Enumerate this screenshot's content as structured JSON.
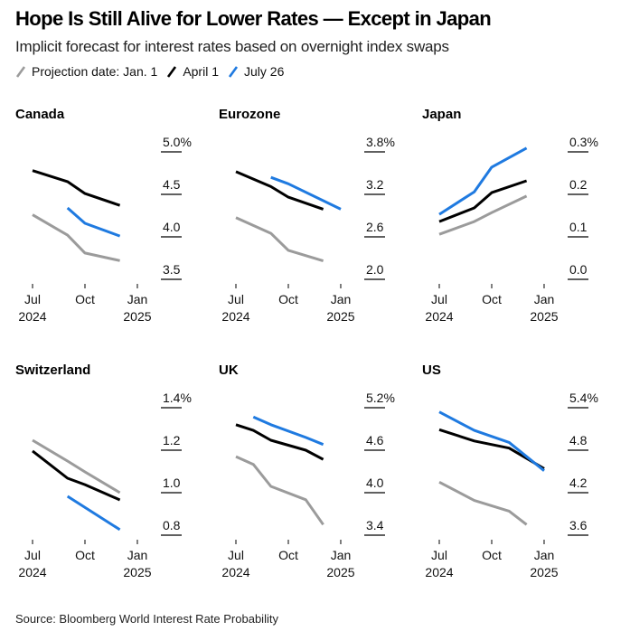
{
  "header": {
    "title": "Hope Is Still Alive for Lower Rates — Except in Japan",
    "subtitle": "Implicit forecast for interest rates based on overnight index swaps"
  },
  "legend": [
    {
      "label": "Projection date: Jan. 1",
      "color": "#9b9b9b"
    },
    {
      "label": "April 1",
      "color": "#000000"
    },
    {
      "label": "July 26",
      "color": "#1f7ae0"
    }
  ],
  "footer": {
    "source": "Source: Bloomberg World Interest Rate Probability"
  },
  "chart_data": [
    {
      "type": "line",
      "title": "Canada",
      "x_unit": "months since Jul 1 2024",
      "xticks": [
        {
          "value": 0,
          "label": "Jul",
          "sublabel": "2024"
        },
        {
          "value": 3,
          "label": "Oct",
          "sublabel": ""
        },
        {
          "value": 6,
          "label": "Jan",
          "sublabel": "2025"
        }
      ],
      "xlim": [
        0,
        6
      ],
      "ylim": [
        3.5,
        5.0
      ],
      "yticks": [
        {
          "value": 5.0,
          "label": "5.0%"
        },
        {
          "value": 4.5,
          "label": "4.5"
        },
        {
          "value": 4.0,
          "label": "4.0"
        },
        {
          "value": 3.5,
          "label": "3.5"
        }
      ],
      "series": [
        {
          "name": "Projection date: Jan. 1",
          "color": "#9b9b9b",
          "x": [
            0,
            2,
            3,
            5
          ],
          "values": [
            4.26,
            4.02,
            3.81,
            3.72
          ]
        },
        {
          "name": "April 1",
          "color": "#000000",
          "x": [
            0,
            2,
            3,
            5
          ],
          "values": [
            4.78,
            4.65,
            4.51,
            4.37
          ]
        },
        {
          "name": "July 26",
          "color": "#1f7ae0",
          "x": [
            2,
            3,
            5
          ],
          "values": [
            4.34,
            4.16,
            4.01
          ]
        }
      ]
    },
    {
      "type": "line",
      "title": "Eurozone",
      "x_unit": "months since Jul 1 2024",
      "xticks": [
        {
          "value": 0,
          "label": "Jul",
          "sublabel": "2024"
        },
        {
          "value": 3,
          "label": "Oct",
          "sublabel": ""
        },
        {
          "value": 6,
          "label": "Jan",
          "sublabel": "2025"
        }
      ],
      "xlim": [
        0,
        6
      ],
      "ylim": [
        2.0,
        3.8
      ],
      "yticks": [
        {
          "value": 3.8,
          "label": "3.8%"
        },
        {
          "value": 3.2,
          "label": "3.2"
        },
        {
          "value": 2.6,
          "label": "2.6"
        },
        {
          "value": 2.0,
          "label": "2.0"
        }
      ],
      "series": [
        {
          "name": "Projection date: Jan. 1",
          "color": "#9b9b9b",
          "x": [
            0,
            2,
            3,
            5
          ],
          "values": [
            2.87,
            2.65,
            2.41,
            2.26
          ]
        },
        {
          "name": "April 1",
          "color": "#000000",
          "x": [
            0,
            2,
            3,
            5
          ],
          "values": [
            3.52,
            3.31,
            3.16,
            2.99
          ]
        },
        {
          "name": "July 26",
          "color": "#1f7ae0",
          "x": [
            2,
            3,
            6
          ],
          "values": [
            3.44,
            3.35,
            2.99
          ]
        }
      ]
    },
    {
      "type": "line",
      "title": "Japan",
      "x_unit": "months since Jul 1 2024",
      "xticks": [
        {
          "value": 0,
          "label": "Jul",
          "sublabel": "2024"
        },
        {
          "value": 3,
          "label": "Oct",
          "sublabel": ""
        },
        {
          "value": 6,
          "label": "Jan",
          "sublabel": "2025"
        }
      ],
      "xlim": [
        0,
        6
      ],
      "ylim": [
        0.0,
        0.3
      ],
      "yticks": [
        {
          "value": 0.3,
          "label": "0.3%"
        },
        {
          "value": 0.2,
          "label": "0.2"
        },
        {
          "value": 0.1,
          "label": "0.1"
        },
        {
          "value": 0.0,
          "label": "0.0"
        }
      ],
      "series": [
        {
          "name": "Projection date: Jan. 1",
          "color": "#9b9b9b",
          "x": [
            0,
            2,
            3,
            5
          ],
          "values": [
            0.106,
            0.136,
            0.157,
            0.196
          ]
        },
        {
          "name": "April 1",
          "color": "#000000",
          "x": [
            0,
            2,
            3,
            5
          ],
          "values": [
            0.136,
            0.168,
            0.204,
            0.232
          ]
        },
        {
          "name": "July 26",
          "color": "#1f7ae0",
          "x": [
            0,
            2,
            3,
            5
          ],
          "values": [
            0.153,
            0.206,
            0.264,
            0.309
          ]
        }
      ]
    },
    {
      "type": "line",
      "title": "Switzerland",
      "x_unit": "months since Jul 1 2024",
      "xticks": [
        {
          "value": 0,
          "label": "Jul",
          "sublabel": "2024"
        },
        {
          "value": 3,
          "label": "Oct",
          "sublabel": ""
        },
        {
          "value": 6,
          "label": "Jan",
          "sublabel": "2025"
        }
      ],
      "xlim": [
        0,
        6
      ],
      "ylim": [
        0.8,
        1.4
      ],
      "yticks": [
        {
          "value": 1.4,
          "label": "1.4%"
        },
        {
          "value": 1.2,
          "label": "1.2"
        },
        {
          "value": 1.0,
          "label": "1.0"
        },
        {
          "value": 0.8,
          "label": "0.8"
        }
      ],
      "series": [
        {
          "name": "Projection date: Jan. 1",
          "color": "#9b9b9b",
          "x": [
            0,
            2,
            3,
            5
          ],
          "values": [
            1.247,
            1.149,
            1.098,
            1.0
          ]
        },
        {
          "name": "April 1",
          "color": "#000000",
          "x": [
            0,
            2,
            3,
            5
          ],
          "values": [
            1.196,
            1.068,
            1.038,
            0.966
          ]
        },
        {
          "name": "July 26",
          "color": "#1f7ae0",
          "x": [
            2,
            5
          ],
          "values": [
            0.983,
            0.826
          ]
        }
      ]
    },
    {
      "type": "line",
      "title": "UK",
      "x_unit": "months since Jul 1 2024",
      "xticks": [
        {
          "value": 0,
          "label": "Jul",
          "sublabel": "2024"
        },
        {
          "value": 3,
          "label": "Oct",
          "sublabel": ""
        },
        {
          "value": 6,
          "label": "Jan",
          "sublabel": "2025"
        }
      ],
      "xlim": [
        0,
        6
      ],
      "ylim": [
        3.4,
        5.2
      ],
      "yticks": [
        {
          "value": 5.2,
          "label": "5.2%"
        },
        {
          "value": 4.6,
          "label": "4.6"
        },
        {
          "value": 4.0,
          "label": "4.0"
        },
        {
          "value": 3.4,
          "label": "3.4"
        }
      ],
      "series": [
        {
          "name": "Projection date: Jan. 1",
          "color": "#9b9b9b",
          "x": [
            0,
            1,
            2,
            4,
            5
          ],
          "values": [
            4.51,
            4.4,
            4.09,
            3.9,
            3.55
          ]
        },
        {
          "name": "April 1",
          "color": "#000000",
          "x": [
            0,
            1,
            2,
            4,
            5
          ],
          "values": [
            4.96,
            4.88,
            4.74,
            4.6,
            4.47
          ]
        },
        {
          "name": "July 26",
          "color": "#1f7ae0",
          "x": [
            1,
            2,
            4,
            5
          ],
          "values": [
            5.07,
            4.96,
            4.78,
            4.68
          ]
        }
      ]
    },
    {
      "type": "line",
      "title": "US",
      "x_unit": "months since Jul 1 2024",
      "xticks": [
        {
          "value": 0,
          "label": "Jul",
          "sublabel": "2024"
        },
        {
          "value": 3,
          "label": "Oct",
          "sublabel": ""
        },
        {
          "value": 6,
          "label": "Jan",
          "sublabel": "2025"
        }
      ],
      "xlim": [
        0,
        6
      ],
      "ylim": [
        3.6,
        5.4
      ],
      "yticks": [
        {
          "value": 5.4,
          "label": "5.4%"
        },
        {
          "value": 4.8,
          "label": "4.8"
        },
        {
          "value": 4.2,
          "label": "4.2"
        },
        {
          "value": 3.6,
          "label": "3.6"
        }
      ],
      "series": [
        {
          "name": "Projection date: Jan. 1",
          "color": "#9b9b9b",
          "x": [
            0,
            2,
            4,
            5
          ],
          "values": [
            4.35,
            4.09,
            3.94,
            3.75
          ]
        },
        {
          "name": "April 1",
          "color": "#000000",
          "x": [
            0,
            2,
            4,
            6
          ],
          "values": [
            5.09,
            4.93,
            4.83,
            4.54
          ]
        },
        {
          "name": "July 26",
          "color": "#1f7ae0",
          "x": [
            0,
            2,
            4,
            6
          ],
          "values": [
            5.34,
            5.08,
            4.91,
            4.51
          ]
        }
      ]
    }
  ]
}
